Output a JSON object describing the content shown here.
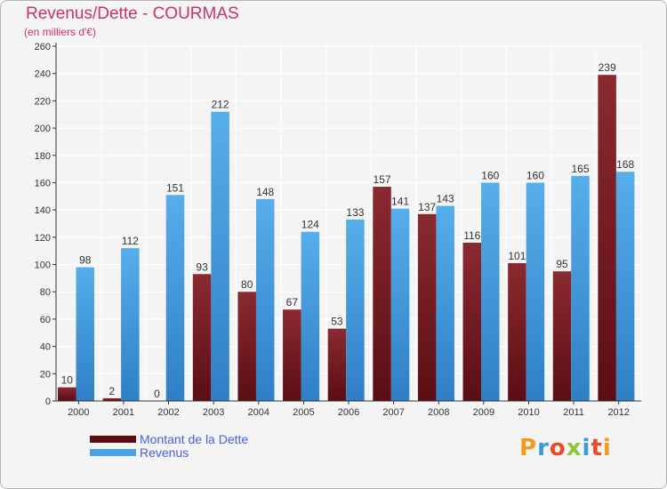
{
  "header": {
    "title": "Revenus/Dette - COURMAS",
    "subtitle": "(en milliers d'€)"
  },
  "colors": {
    "dette": "#7a1f26",
    "revenus": "#4aa3e6",
    "title": "#c8336b",
    "legend_text": "#4a5fd8",
    "grid": "#ffffff",
    "plot_bg": "#f4f4f4"
  },
  "legend": {
    "items": [
      {
        "label": "Montant de la Dette",
        "color": "#5a0e14"
      },
      {
        "label": "Revenus",
        "color": "#4aa3e6"
      }
    ]
  },
  "logo": {
    "text": "Proxiti"
  },
  "chart_data": {
    "type": "bar",
    "title": "Revenus/Dette - COURMAS",
    "subtitle": "(en milliers d'€)",
    "categories": [
      "2000",
      "2001",
      "2002",
      "2003",
      "2004",
      "2005",
      "2006",
      "2007",
      "2008",
      "2009",
      "2010",
      "2011",
      "2012"
    ],
    "series": [
      {
        "name": "Montant de la Dette",
        "color": "#7a1f26",
        "values": [
          10,
          2,
          0,
          93,
          80,
          67,
          53,
          157,
          137,
          116,
          101,
          95,
          239
        ]
      },
      {
        "name": "Revenus",
        "color": "#4aa3e6",
        "values": [
          98,
          112,
          151,
          212,
          148,
          124,
          133,
          141,
          143,
          160,
          160,
          165,
          168
        ]
      }
    ],
    "ylim": [
      0,
      260
    ],
    "yticks": [
      0,
      20,
      40,
      60,
      80,
      100,
      120,
      140,
      160,
      180,
      200,
      220,
      240,
      260
    ],
    "grid": true,
    "legend_position": "bottom-left"
  }
}
